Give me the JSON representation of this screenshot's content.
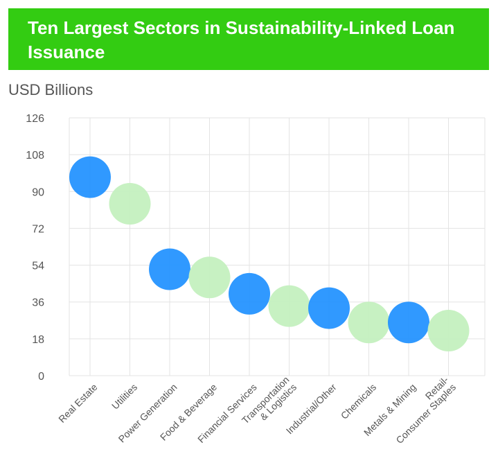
{
  "title": "Ten Largest Sectors in Sustainability-Linked Loan Issuance",
  "ylabel": "USD Billions",
  "colors": {
    "banner": "#33cc12",
    "blue": "#1e90ff",
    "green": "#c4f0bf",
    "grid": "#e3e3e3",
    "text": "#555555"
  },
  "chart_data": {
    "type": "scatter",
    "title": "Ten Largest Sectors in Sustainability-Linked Loan Issuance",
    "ylabel": "USD Billions",
    "ylim": [
      0,
      126
    ],
    "yticks": [
      0,
      18,
      36,
      54,
      72,
      90,
      108,
      126
    ],
    "grid": true,
    "categories": [
      "Real Estate",
      "Utilities",
      "Power Generation",
      "Food & Beverage",
      "Financial Services",
      "Transportation & Logistics",
      "Industrial/Other",
      "Chemicals",
      "Metals & Mining",
      "Retail-Consumer Staples"
    ],
    "category_label_lines": [
      [
        "Real Estate"
      ],
      [
        "Utilities"
      ],
      [
        "Power Generation"
      ],
      [
        "Food & Beverage"
      ],
      [
        "Financial Services"
      ],
      [
        "Transportation",
        "& Logistics"
      ],
      [
        "Industrial/Other"
      ],
      [
        "Chemicals"
      ],
      [
        "Metals & Mining"
      ],
      [
        "Retail-",
        "Consumer Staples"
      ]
    ],
    "values": [
      97,
      84,
      52,
      48,
      40,
      34,
      33,
      26,
      26,
      22
    ],
    "point_colors": [
      "blue",
      "green",
      "blue",
      "green",
      "blue",
      "green",
      "blue",
      "green",
      "blue",
      "green"
    ]
  }
}
